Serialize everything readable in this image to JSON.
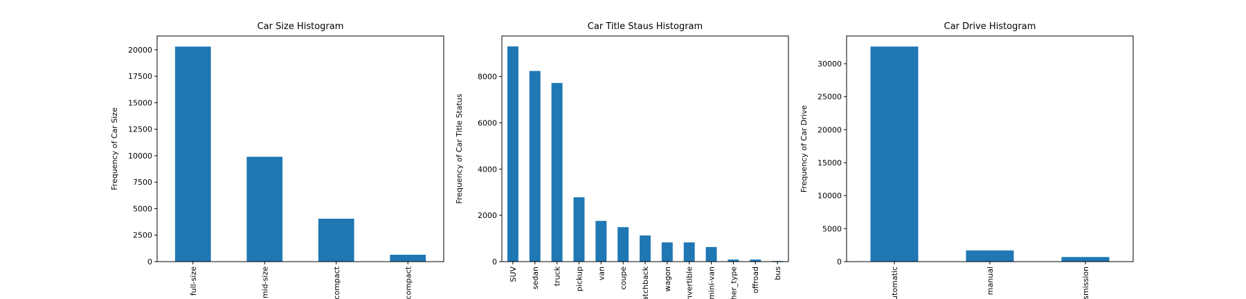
{
  "chart_data": [
    {
      "type": "bar",
      "title": "Car Size Histogram",
      "y_label": "Frequency of Car Size",
      "categories": [
        "full-size",
        "mid-size",
        "compact",
        "-compact"
      ],
      "values": [
        20300,
        9900,
        4050,
        650
      ],
      "color": "#1f77b4",
      "ylim": [
        0,
        21300
      ],
      "yticks": [
        0,
        2500,
        5000,
        7500,
        10000,
        12500,
        15000,
        17500,
        20000
      ]
    },
    {
      "type": "bar",
      "title": "Car Title Staus Histogram",
      "y_label": "Frequency of Car Title Status",
      "categories": [
        "SUV",
        "sedan",
        "truck",
        "pickup",
        "van",
        "coupe",
        "atchback",
        "wagon",
        "nvertible",
        "mini-van",
        "her_type",
        "offroad",
        "bus"
      ],
      "values": [
        9300,
        8240,
        7720,
        2780,
        1760,
        1490,
        1130,
        830,
        830,
        630,
        90,
        90,
        30
      ],
      "color": "#1f77b4",
      "ylim": [
        0,
        9750
      ],
      "yticks": [
        0,
        2000,
        4000,
        6000,
        8000
      ]
    },
    {
      "type": "bar",
      "title": "Car Drive Histogram",
      "y_label": "Frequency of Car Drive",
      "categories": [
        "utomatic",
        "manual",
        "smission"
      ],
      "values": [
        32600,
        1700,
        700
      ],
      "color": "#1f77b4",
      "ylim": [
        0,
        34200
      ],
      "yticks": [
        0,
        5000,
        10000,
        15000,
        20000,
        25000,
        30000
      ]
    }
  ]
}
